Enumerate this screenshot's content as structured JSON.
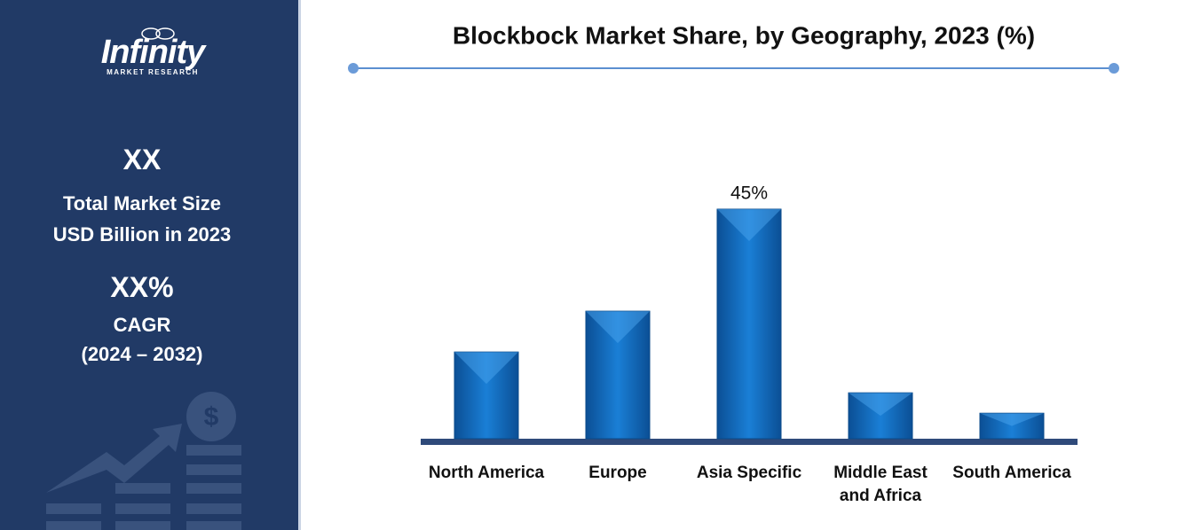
{
  "sidebar": {
    "logo": "Infinity",
    "logo_sub": "MARKET RESEARCH",
    "market_size": "XX",
    "market_size_label_1": "Total Market Size",
    "market_size_label_2": "USD Billion in 2023",
    "cagr": "XX%",
    "cagr_label": "CAGR",
    "cagr_period": "(2024 – 2032)"
  },
  "chart_data": {
    "type": "bar",
    "title": "Blockbock Market Share, by Geography, 2023 (%)",
    "categories": [
      "North America",
      "Europe",
      "Asia Specific",
      "Middle East and Africa",
      "South America"
    ],
    "values": [
      17,
      25,
      45,
      9,
      5
    ],
    "value_labels": [
      null,
      null,
      "45%",
      null,
      null
    ],
    "color": "#1370c6"
  }
}
